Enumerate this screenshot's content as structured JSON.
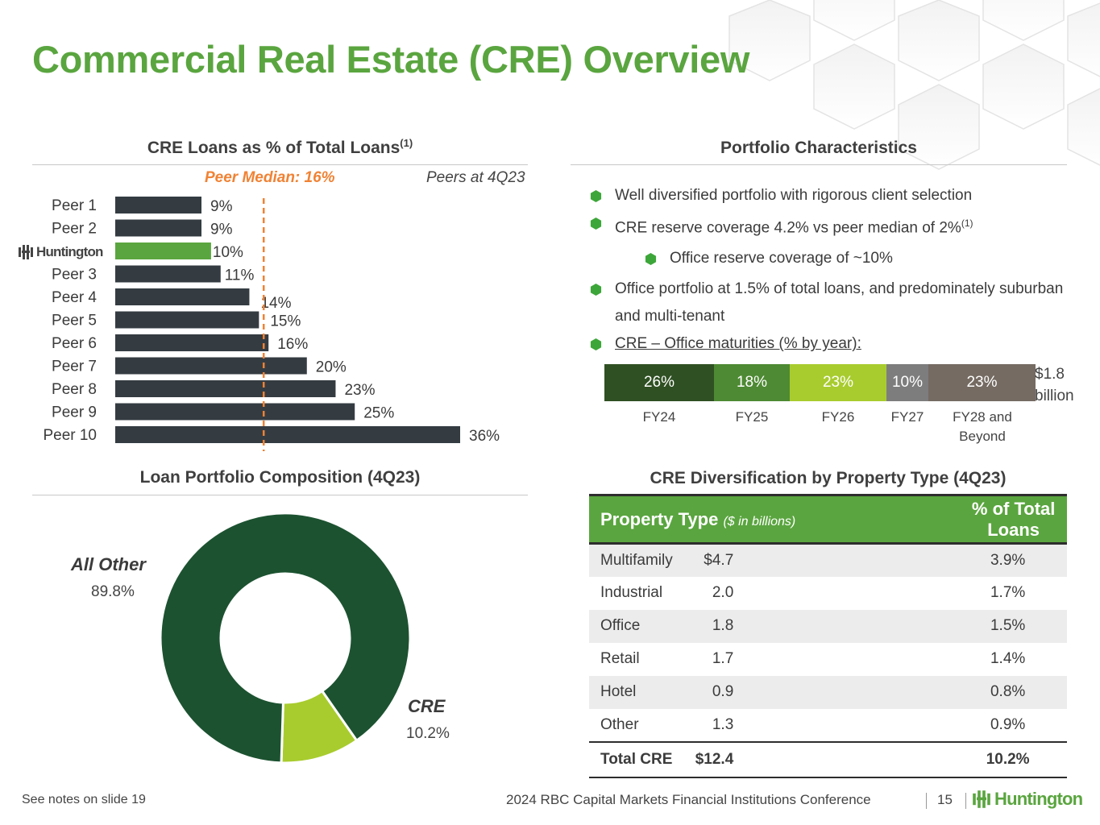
{
  "title": "Commercial Real Estate (CRE) Overview",
  "colors": {
    "brand_green": "#5aa53f",
    "bar_dark": "#343c42",
    "median_orange": "#f08234",
    "dark_green": "#1c5230"
  },
  "cre_loans": {
    "heading": "CRE Loans as % of Total Loans",
    "heading_sup": "(1)",
    "median_label": "Peer Median: 16%",
    "peers_at": "Peers at 4Q23"
  },
  "portfolio": {
    "heading": "Portfolio Characteristics",
    "bullets": [
      {
        "text": "Well diversified portfolio with rigorous client selection"
      },
      {
        "text": "CRE reserve coverage 4.2% vs peer median of 2%",
        "sup": "(1)"
      },
      {
        "text": "Office reserve coverage of ~10%"
      },
      {
        "text": "Office portfolio at 1.5% of total loans, and predominately suburban and multi-tenant"
      },
      {
        "text": "CRE – Office maturities (% by year):"
      }
    ],
    "maturities_total": "$1.8 billion"
  },
  "loan_portfolio": {
    "heading": "Loan Portfolio Composition (4Q23)"
  },
  "cre_div": {
    "heading": "CRE Diversification by Property Type (4Q23)",
    "col1": "Property Type",
    "col1_sub": "($ in billions)",
    "col2": "% of Total Loans",
    "rows": [
      {
        "type": "Multifamily",
        "amount": "$4.7",
        "pct": "3.9%"
      },
      {
        "type": "Industrial",
        "amount": "2.0",
        "pct": "1.7%"
      },
      {
        "type": "Office",
        "amount": "1.8",
        "pct": "1.5%"
      },
      {
        "type": "Retail",
        "amount": "1.7",
        "pct": "1.4%"
      },
      {
        "type": "Hotel",
        "amount": "0.9",
        "pct": "0.8%"
      },
      {
        "type": "Other",
        "amount": "1.3",
        "pct": "0.9%"
      }
    ],
    "total": {
      "type": "Total CRE",
      "amount": "$12.4",
      "pct": "10.2%"
    }
  },
  "footer": {
    "note": "See notes on slide 19",
    "conference": "2024 RBC Capital Markets Financial Institutions Conference",
    "page": "15",
    "logo": "Huntington"
  },
  "chart_data": [
    {
      "type": "bar",
      "orientation": "horizontal",
      "title": "CRE Loans as % of Total Loans",
      "categories": [
        "Peer 1",
        "Peer 2",
        "Huntington",
        "Peer 3",
        "Peer 4",
        "Peer 5",
        "Peer 6",
        "Peer 7",
        "Peer 8",
        "Peer 9",
        "Peer 10"
      ],
      "values": [
        9,
        9,
        10,
        11,
        14,
        15,
        16,
        20,
        23,
        25,
        36
      ],
      "data_labels": [
        "9%",
        "9%",
        "10%",
        "11%",
        "14%",
        "15%",
        "16%",
        "20%",
        "23%",
        "25%",
        "36%"
      ],
      "highlight": "Huntington",
      "reference_line": {
        "label": "Peer Median: 16%",
        "value": 16
      },
      "xlim": [
        0,
        40
      ]
    },
    {
      "type": "bar",
      "orientation": "stacked-horizontal",
      "title": "CRE – Office maturities (% by year):",
      "categories": [
        "FY24",
        "FY25",
        "FY26",
        "FY27",
        "FY28 and Beyond"
      ],
      "values": [
        26,
        18,
        23,
        10,
        23
      ],
      "data_labels": [
        "26%",
        "18%",
        "23%",
        "10%",
        "23%"
      ],
      "colors": [
        "#2f5023",
        "#4e8a33",
        "#a8cc2e",
        "#7d7d7d",
        "#756b62"
      ]
    },
    {
      "type": "pie",
      "style": "donut",
      "title": "Loan Portfolio Composition (4Q23)",
      "slices": [
        {
          "label": "All Other",
          "value": 89.8,
          "display": "89.8%",
          "color": "#1c5230"
        },
        {
          "label": "CRE",
          "value": 10.2,
          "display": "10.2%",
          "color": "#a8cc2e"
        }
      ]
    }
  ]
}
